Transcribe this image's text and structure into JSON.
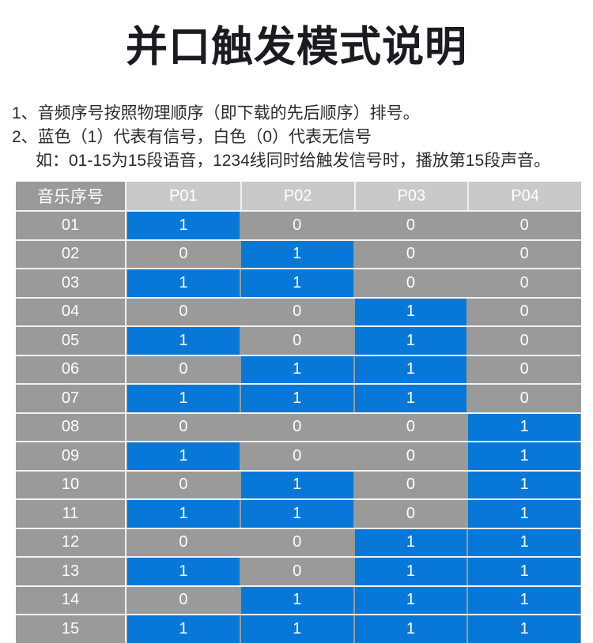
{
  "page": {
    "title": "并口触发模式说明",
    "note1": "1、音频序号按照物理顺序（即下载的先后顺序）排号。",
    "note2": "2、蓝色（1）代表有信号，白色（0）代表无信号",
    "note3": "如：01-15为15段语音，1234线同时给触发信号时，播放第15段声音。"
  },
  "table": {
    "header": [
      "音乐序号",
      "P01",
      "P02",
      "P03",
      "P04"
    ],
    "rows": [
      {
        "label": "01",
        "values": [
          1,
          0,
          0,
          0
        ]
      },
      {
        "label": "02",
        "values": [
          0,
          1,
          0,
          0
        ]
      },
      {
        "label": "03",
        "values": [
          1,
          1,
          0,
          0
        ]
      },
      {
        "label": "04",
        "values": [
          0,
          0,
          1,
          0
        ]
      },
      {
        "label": "05",
        "values": [
          1,
          0,
          1,
          0
        ]
      },
      {
        "label": "06",
        "values": [
          0,
          1,
          1,
          0
        ]
      },
      {
        "label": "07",
        "values": [
          1,
          1,
          1,
          0
        ]
      },
      {
        "label": "08",
        "values": [
          0,
          0,
          0,
          1
        ]
      },
      {
        "label": "09",
        "values": [
          1,
          0,
          0,
          1
        ]
      },
      {
        "label": "10",
        "values": [
          0,
          1,
          0,
          1
        ]
      },
      {
        "label": "11",
        "values": [
          1,
          1,
          0,
          1
        ]
      },
      {
        "label": "12",
        "values": [
          0,
          0,
          1,
          1
        ]
      },
      {
        "label": "13",
        "values": [
          1,
          0,
          1,
          1
        ]
      },
      {
        "label": "14",
        "values": [
          0,
          1,
          1,
          1
        ]
      },
      {
        "label": "15",
        "values": [
          1,
          1,
          1,
          1
        ]
      }
    ]
  },
  "colors": {
    "signal_on": "#0778d7",
    "signal_off": "#9a9a9a",
    "header_p_bg": "#c9c9c9",
    "header_label_bg": "#9a9a9a",
    "grid_line": "#f2f2f2",
    "title_color": "#1b1b22",
    "text_color": "#2b2b2b",
    "cell_text": "#ffffff"
  }
}
